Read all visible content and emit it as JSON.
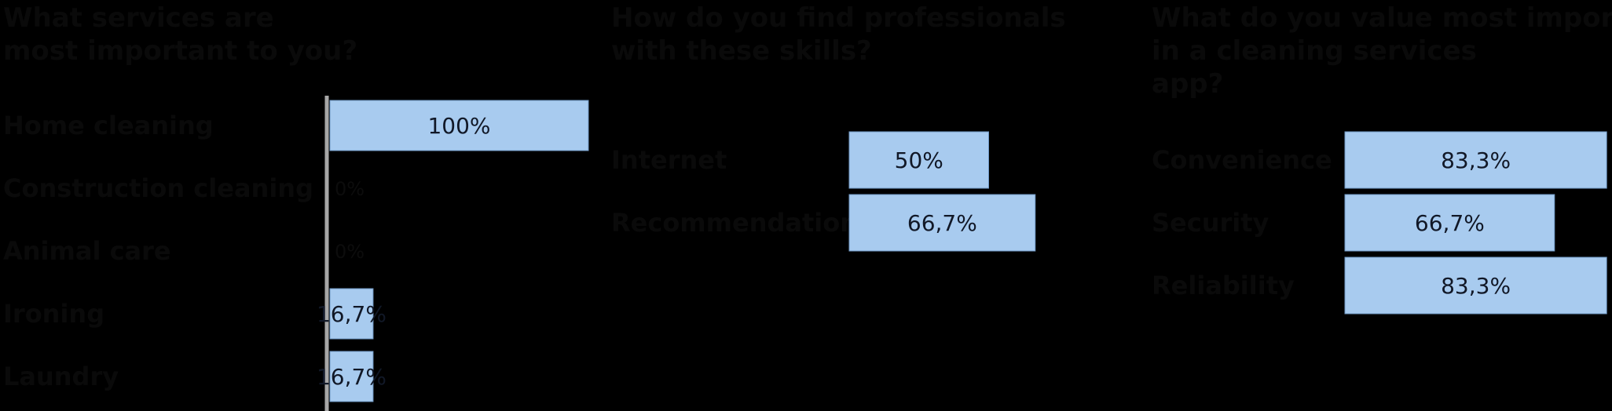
{
  "colors": {
    "background": "#000000",
    "bar_fill": "#a8cbef",
    "bar_stroke": "#6f98c5",
    "axis": "#a7a7a7",
    "text_on_bar": "#111827",
    "hidden_text": "#0a0a0a"
  },
  "chart_data": [
    {
      "type": "bar",
      "orientation": "horizontal",
      "title": "What services are most important to you?",
      "categories": [
        "Home cleaning",
        "Construction cleaning",
        "Animal care",
        "Ironing",
        "Laundry"
      ],
      "values": [
        100,
        0,
        0,
        16.7,
        16.7
      ],
      "value_labels": [
        "100%",
        "0%",
        "0%",
        "16,7%",
        "16,7%"
      ],
      "xlim": [
        0,
        100
      ]
    },
    {
      "type": "bar",
      "orientation": "horizontal",
      "title": "How do you find professionals with these skills?",
      "categories": [
        "Internet",
        "Recommendations"
      ],
      "values": [
        50,
        66.7
      ],
      "value_labels": [
        "50%",
        "66,7%"
      ],
      "xlim": [
        0,
        100
      ]
    },
    {
      "type": "bar",
      "orientation": "horizontal",
      "title": "What do you value most important in a cleaning services app?",
      "categories": [
        "Convenience",
        "Security",
        "Reliability"
      ],
      "values": [
        83.3,
        66.7,
        83.3
      ],
      "value_labels": [
        "83,3%",
        "66,7%",
        "83,3%"
      ],
      "xlim": [
        0,
        100
      ]
    }
  ]
}
